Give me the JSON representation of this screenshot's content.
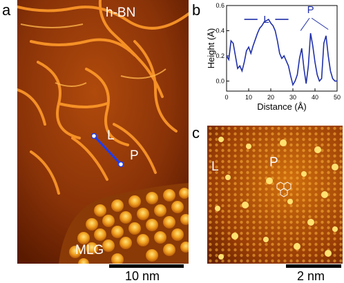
{
  "panels": {
    "a": {
      "letter": "a",
      "labels": {
        "material": "h-BN",
        "line": "L",
        "point": "P",
        "substrate": "MLG"
      },
      "scale_label": "10 nm"
    },
    "b": {
      "letter": "b"
    },
    "c": {
      "letter": "c",
      "labels": {
        "line": "L",
        "point": "P"
      },
      "scale_label": "2 nm"
    }
  },
  "colors": {
    "stm_dark": "#5a1a00",
    "stm_mid": "#a8420a",
    "stm_bright": "#ffd24a",
    "profile": "#1f2fa8"
  },
  "chart_data": {
    "type": "line",
    "xlabel": "Distance (Å)",
    "ylabel": "Height (Å)",
    "xlim": [
      0,
      50
    ],
    "ylim": [
      -0.08,
      0.6
    ],
    "xticks": [
      "0",
      "10",
      "20",
      "30",
      "40",
      "50"
    ],
    "yticks": [
      "0.0",
      "0.2",
      "0.4",
      "0.6"
    ],
    "annotations": [
      "L",
      "P"
    ],
    "x": [
      0,
      1,
      2,
      3,
      4,
      5,
      6,
      7,
      8,
      9,
      10,
      11,
      12,
      13,
      14,
      15,
      16,
      17,
      18,
      19,
      20,
      21,
      22,
      23,
      24,
      25,
      26,
      27,
      28,
      29,
      30,
      31,
      32,
      33,
      34,
      35,
      36,
      37,
      38,
      39,
      40,
      41,
      42,
      43,
      44,
      45,
      46,
      47,
      48,
      49,
      50
    ],
    "y": [
      0.2,
      0.17,
      0.32,
      0.3,
      0.2,
      0.1,
      0.12,
      0.08,
      0.15,
      0.24,
      0.27,
      0.22,
      0.28,
      0.33,
      0.38,
      0.42,
      0.44,
      0.47,
      0.48,
      0.49,
      0.46,
      0.44,
      0.4,
      0.32,
      0.22,
      0.18,
      0.2,
      0.16,
      0.12,
      0.04,
      -0.03,
      0.0,
      0.05,
      0.18,
      0.26,
      0.1,
      -0.02,
      0.12,
      0.38,
      0.28,
      0.15,
      0.05,
      0.0,
      0.02,
      0.3,
      0.36,
      0.2,
      0.08,
      0.02,
      0.0,
      0.0
    ]
  }
}
